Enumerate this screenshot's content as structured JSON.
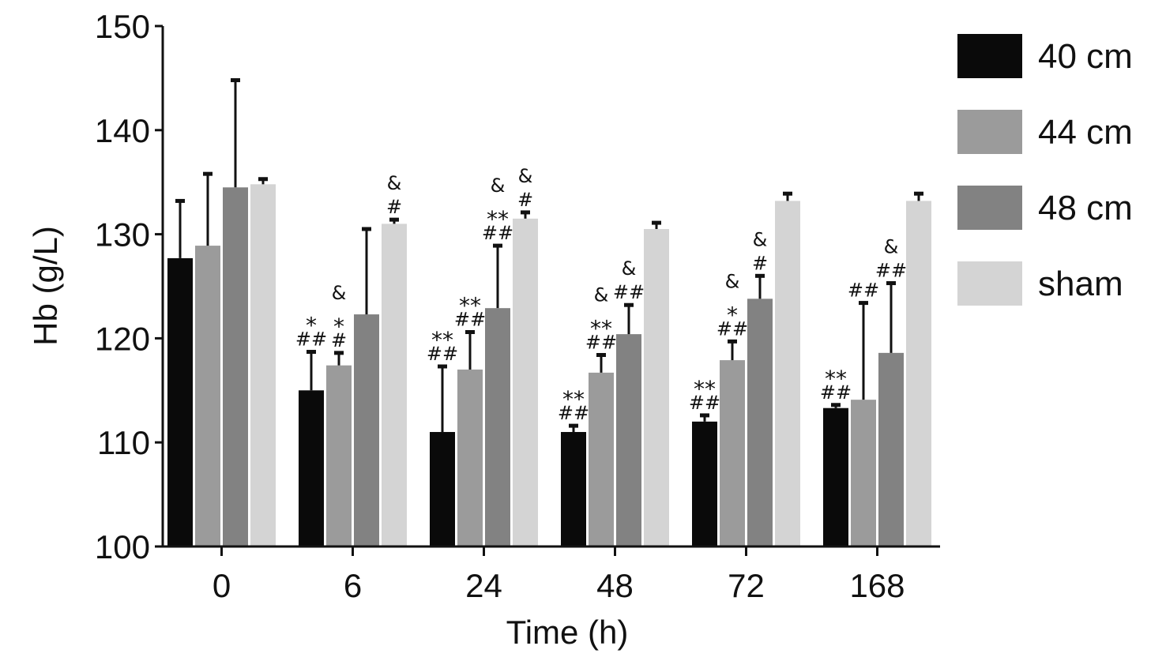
{
  "chart_data": {
    "type": "bar",
    "xlabel": "Time (h)",
    "ylabel": "Hb (g/L)",
    "ylim": [
      100,
      150
    ],
    "yticks": [
      "100",
      "110",
      "120",
      "130",
      "140",
      "150"
    ],
    "categories": [
      "0",
      "6",
      "24",
      "48",
      "72",
      "168"
    ],
    "colors": [
      "#0a0a0a",
      "#9b9b9b",
      "#828282",
      "#d4d4d4"
    ],
    "series": [
      {
        "name": "40 cm",
        "values": [
          127.7,
          115.0,
          111.0,
          111.0,
          112.0,
          113.3
        ],
        "errors": [
          5.5,
          3.7,
          6.3,
          0.6,
          0.6,
          0.3
        ],
        "annotations": [
          [],
          [
            "*",
            "##"
          ],
          [
            "**",
            "##"
          ],
          [
            "**",
            "##"
          ],
          [
            "**",
            "##"
          ],
          [
            "**",
            "##"
          ]
        ]
      },
      {
        "name": "44 cm",
        "values": [
          128.9,
          117.4,
          117.0,
          116.7,
          117.9,
          114.1
        ],
        "errors": [
          6.9,
          1.2,
          3.6,
          1.7,
          1.8,
          9.3
        ],
        "annotations": [
          [],
          [
            "&",
            "*",
            "#"
          ],
          [
            "**",
            "##"
          ],
          [
            "&",
            "**",
            "##"
          ],
          [
            "&",
            "*",
            "##"
          ],
          [
            "##"
          ]
        ]
      },
      {
        "name": "48 cm",
        "values": [
          134.5,
          122.3,
          122.9,
          120.4,
          123.8,
          118.6
        ],
        "errors": [
          10.3,
          8.2,
          6.0,
          2.8,
          2.2,
          6.7
        ],
        "annotations": [
          [],
          [],
          [
            "&",
            "**",
            "##"
          ],
          [
            "&",
            "##"
          ],
          [
            "&",
            "#"
          ],
          [
            "&",
            "##"
          ]
        ]
      },
      {
        "name": "sham",
        "values": [
          134.8,
          131.0,
          131.5,
          130.5,
          133.2,
          133.2
        ],
        "errors": [
          0.5,
          0.4,
          0.6,
          0.6,
          0.7,
          0.7
        ],
        "annotations": [
          [],
          [
            "&",
            "#"
          ],
          [
            "&",
            "#"
          ],
          [],
          [],
          []
        ]
      }
    ]
  }
}
